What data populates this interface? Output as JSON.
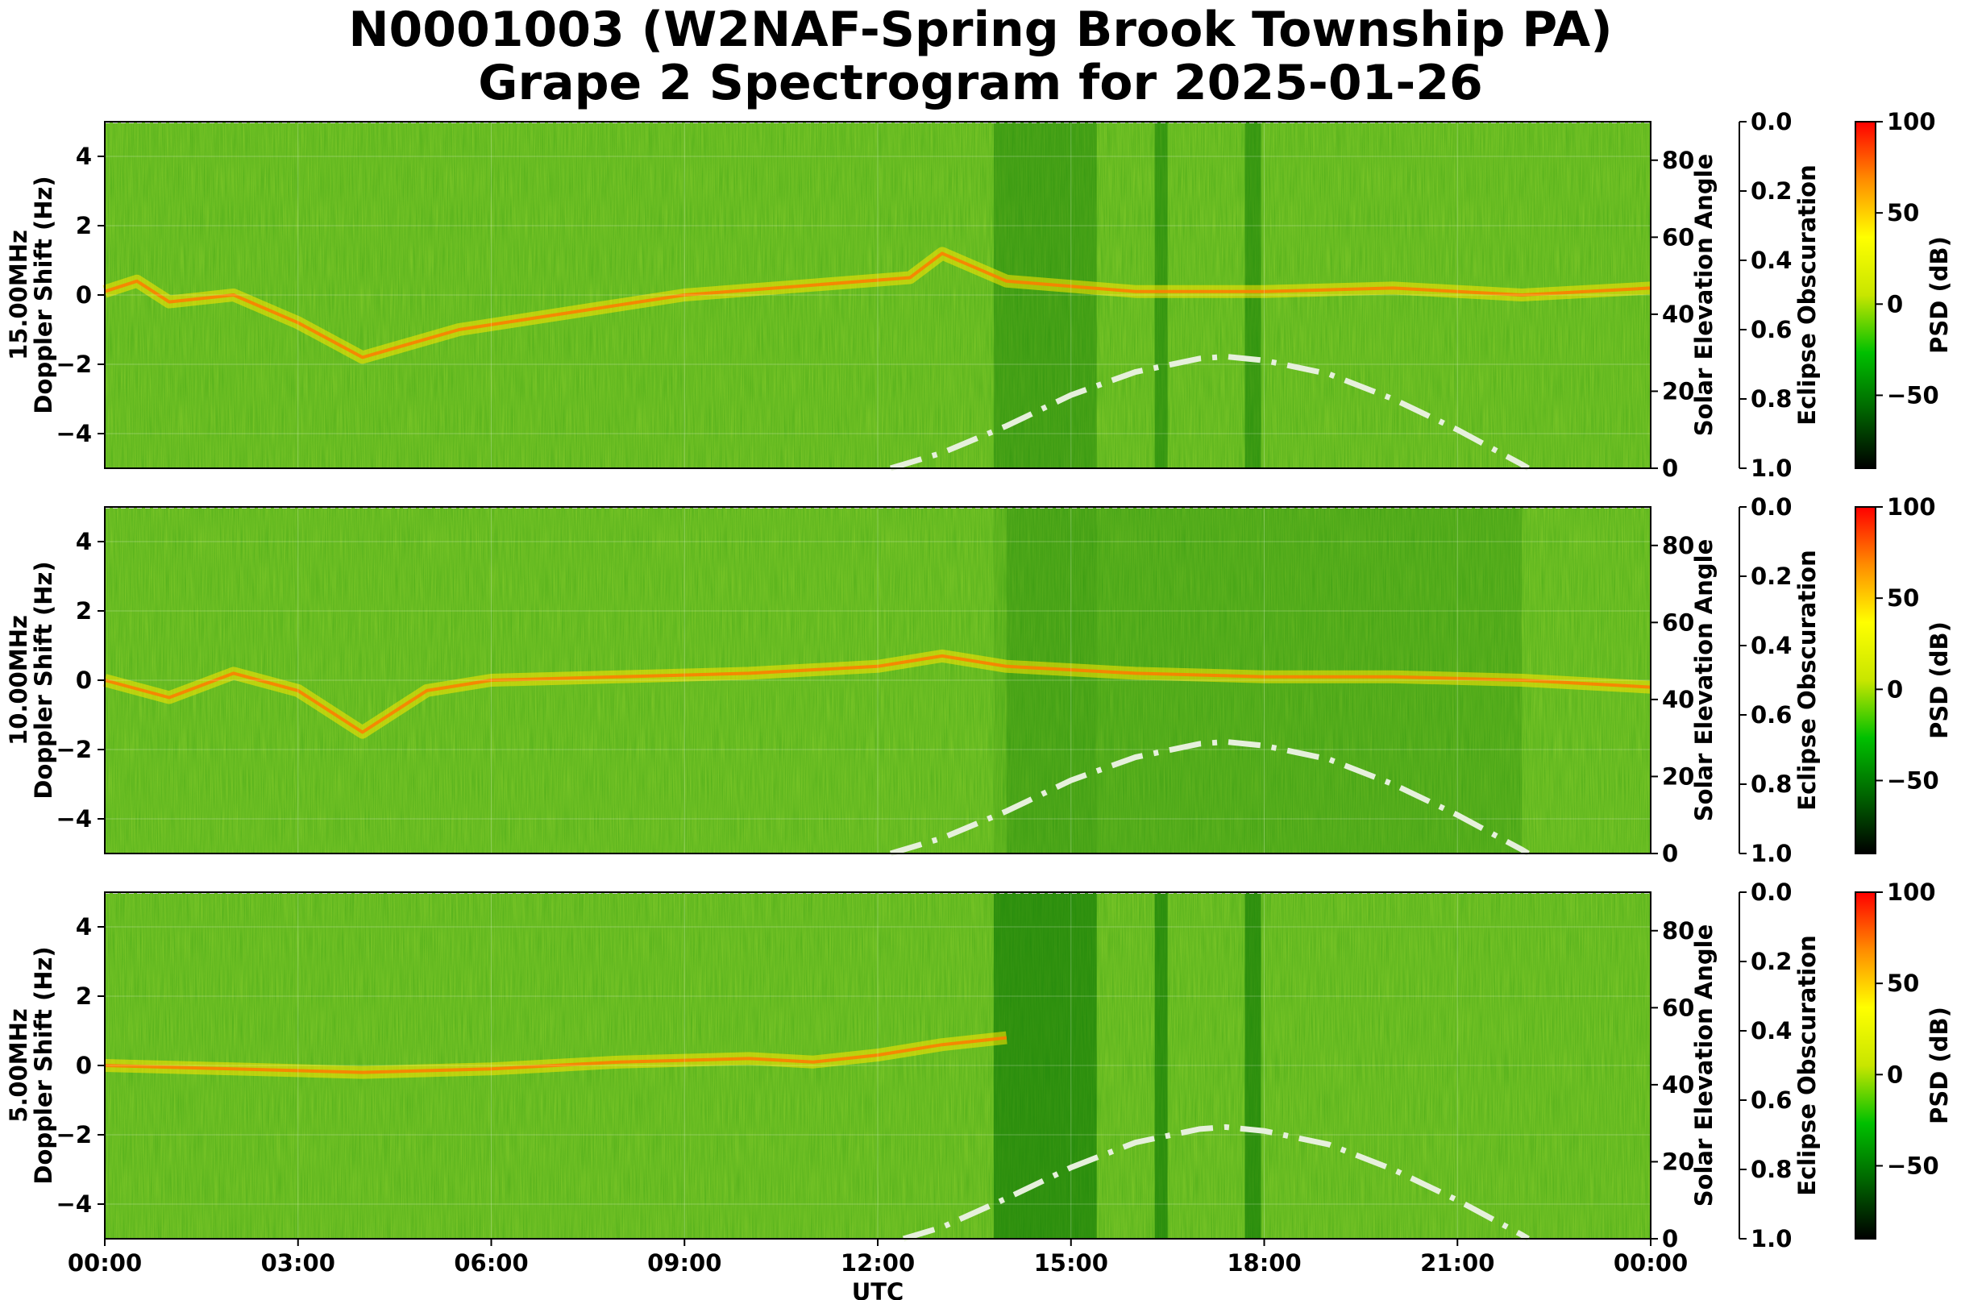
{
  "chart_data": {
    "type": "heatmap",
    "title": "N0001003 (W2NAF-Spring Brook Township PA)",
    "subtitle": "Grape 2 Spectrogram for 2025-01-26",
    "xlabel": "UTC",
    "x_ticks": [
      "00:00",
      "03:00",
      "06:00",
      "09:00",
      "12:00",
      "15:00",
      "18:00",
      "21:00",
      "00:00"
    ],
    "xlim_hours": [
      0,
      24
    ],
    "ylabel": "Doppler Shift (Hz)",
    "ylim": [
      -5,
      5
    ],
    "y_ticks": [
      "4",
      "2",
      "0",
      "−2",
      "−4"
    ],
    "y2label": "Solar Elevation Angle",
    "y2lim": [
      0,
      90
    ],
    "y2_ticks": [
      "0",
      "20",
      "40",
      "60",
      "80"
    ],
    "y3label": "Eclipse Obscuration",
    "y3lim": [
      1.0,
      0.0
    ],
    "y3_ticks": [
      "0.0",
      "0.2",
      "0.4",
      "0.6",
      "0.8",
      "1.0"
    ],
    "colorbar_label": "PSD (dB)",
    "colorbar_range": [
      -90,
      100
    ],
    "colorbar_ticks": [
      "100",
      "50",
      "0",
      "−50"
    ],
    "colormap": [
      "#000000",
      "#006400",
      "#00c000",
      "#c8e600",
      "#ffff00",
      "#ff8c00",
      "#ff0000"
    ],
    "grid": true,
    "panels": [
      {
        "label": "15.00MHz",
        "carrier_doppler": [
          [
            0,
            0.1
          ],
          [
            0.5,
            0.4
          ],
          [
            1,
            -0.2
          ],
          [
            2,
            0.0
          ],
          [
            3,
            -0.8
          ],
          [
            4,
            -1.8
          ],
          [
            5.5,
            -1.0
          ],
          [
            9,
            0.0
          ],
          [
            12.5,
            0.5
          ],
          [
            13,
            1.2
          ],
          [
            14,
            0.4
          ],
          [
            16,
            0.1
          ],
          [
            18,
            0.1
          ],
          [
            20,
            0.2
          ],
          [
            22,
            0.0
          ],
          [
            24,
            0.2
          ]
        ],
        "solar_elevation": [
          [
            12.2,
            0
          ],
          [
            13,
            4
          ],
          [
            14,
            11
          ],
          [
            15,
            19
          ],
          [
            16,
            25
          ],
          [
            17,
            28.5
          ],
          [
            17.4,
            29
          ],
          [
            18,
            28
          ],
          [
            19,
            24.5
          ],
          [
            20,
            18
          ],
          [
            21,
            10
          ],
          [
            22,
            1
          ],
          [
            22.1,
            0
          ]
        ]
      },
      {
        "label": "10.00MHz",
        "carrier_doppler": [
          [
            0,
            0.0
          ],
          [
            1,
            -0.5
          ],
          [
            2,
            0.2
          ],
          [
            3,
            -0.3
          ],
          [
            4,
            -1.5
          ],
          [
            5,
            -0.3
          ],
          [
            6,
            0.0
          ],
          [
            8,
            0.1
          ],
          [
            10,
            0.2
          ],
          [
            12,
            0.4
          ],
          [
            13,
            0.7
          ],
          [
            14,
            0.4
          ],
          [
            16,
            0.2
          ],
          [
            18,
            0.1
          ],
          [
            20,
            0.1
          ],
          [
            22,
            0.0
          ],
          [
            24,
            -0.2
          ]
        ],
        "solar_elevation": [
          [
            12.2,
            0
          ],
          [
            13,
            4
          ],
          [
            14,
            11
          ],
          [
            15,
            19
          ],
          [
            16,
            25
          ],
          [
            17,
            28.5
          ],
          [
            17.4,
            29
          ],
          [
            18,
            28
          ],
          [
            19,
            24.5
          ],
          [
            20,
            18
          ],
          [
            21,
            10
          ],
          [
            22,
            1
          ],
          [
            22.1,
            0
          ]
        ]
      },
      {
        "label": "5.00MHz",
        "carrier_doppler": [
          [
            0,
            0.0
          ],
          [
            2,
            -0.1
          ],
          [
            4,
            -0.2
          ],
          [
            6,
            -0.1
          ],
          [
            8,
            0.1
          ],
          [
            10,
            0.2
          ],
          [
            11,
            0.1
          ],
          [
            12,
            0.3
          ],
          [
            13,
            0.6
          ],
          [
            14,
            0.8
          ]
        ],
        "solar_elevation": [
          [
            12.4,
            0
          ],
          [
            13,
            3
          ],
          [
            14,
            10.5
          ],
          [
            15,
            18.5
          ],
          [
            16,
            25
          ],
          [
            17,
            28.5
          ],
          [
            17.4,
            29
          ],
          [
            18,
            28
          ],
          [
            19,
            24.5
          ],
          [
            20,
            18
          ],
          [
            21,
            10
          ],
          [
            22,
            1
          ],
          [
            22.1,
            0
          ]
        ]
      }
    ]
  }
}
